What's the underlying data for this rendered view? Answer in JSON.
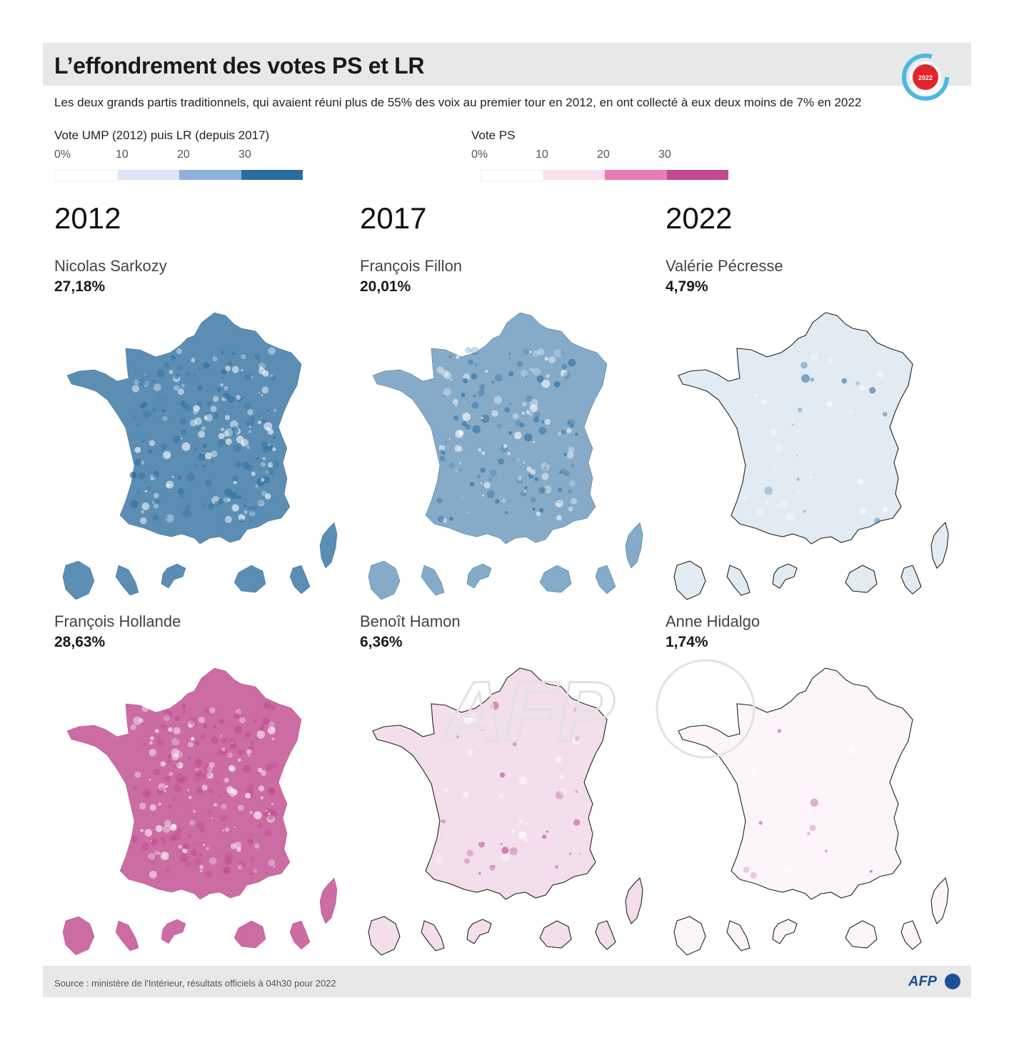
{
  "title": "L’effondrement des votes PS et LR",
  "subtitle": "Les deux grands partis traditionnels, qui avaient réuni plus de 55% des voix au premier tour en 2012, en ont collecté à eux deux moins de 7% en 2022",
  "badge_year": "2022",
  "legends": [
    {
      "title": "Vote UMP (2012) puis LR (depuis 2017)",
      "ticks": [
        "0%",
        "10",
        "20",
        "30"
      ],
      "colors": [
        "#ffffff",
        "#dde5f5",
        "#8fb0dc",
        "#2b6c9e"
      ]
    },
    {
      "title": "Vote PS",
      "ticks": [
        "0%",
        "10",
        "20",
        "30"
      ],
      "colors": [
        "#ffffff",
        "#fbe1ee",
        "#e57cb4",
        "#bf4a8e"
      ]
    }
  ],
  "years": [
    "2012",
    "2017",
    "2022"
  ],
  "panels": [
    {
      "party": "LR",
      "year": "2012",
      "candidate": "Nicolas Sarkozy",
      "percent": "27,18%",
      "share": 27.18,
      "color": "#2b6c9e"
    },
    {
      "party": "LR",
      "year": "2017",
      "candidate": "François Fillon",
      "percent": "20,01%",
      "share": 20.01,
      "color": "#2b6c9e"
    },
    {
      "party": "LR",
      "year": "2022",
      "candidate": "Valérie Pécresse",
      "percent": "4,79%",
      "share": 4.79,
      "color": "#2b6c9e"
    },
    {
      "party": "PS",
      "year": "2012",
      "candidate": "François Hollande",
      "percent": "28,63%",
      "share": 28.63,
      "color": "#bf4a8e"
    },
    {
      "party": "PS",
      "year": "2017",
      "candidate": "Benoît Hamon",
      "percent": "6,36%",
      "share": 6.36,
      "color": "#bf4a8e"
    },
    {
      "party": "PS",
      "year": "2022",
      "candidate": "Anne Hidalgo",
      "percent": "1,74%",
      "share": 1.74,
      "color": "#bf4a8e"
    }
  ],
  "watermark": "AFP",
  "source": "Source : ministère de l'Intérieur, résultats officiels à 04h30 pour 2022",
  "footer_logo": "AFP"
}
